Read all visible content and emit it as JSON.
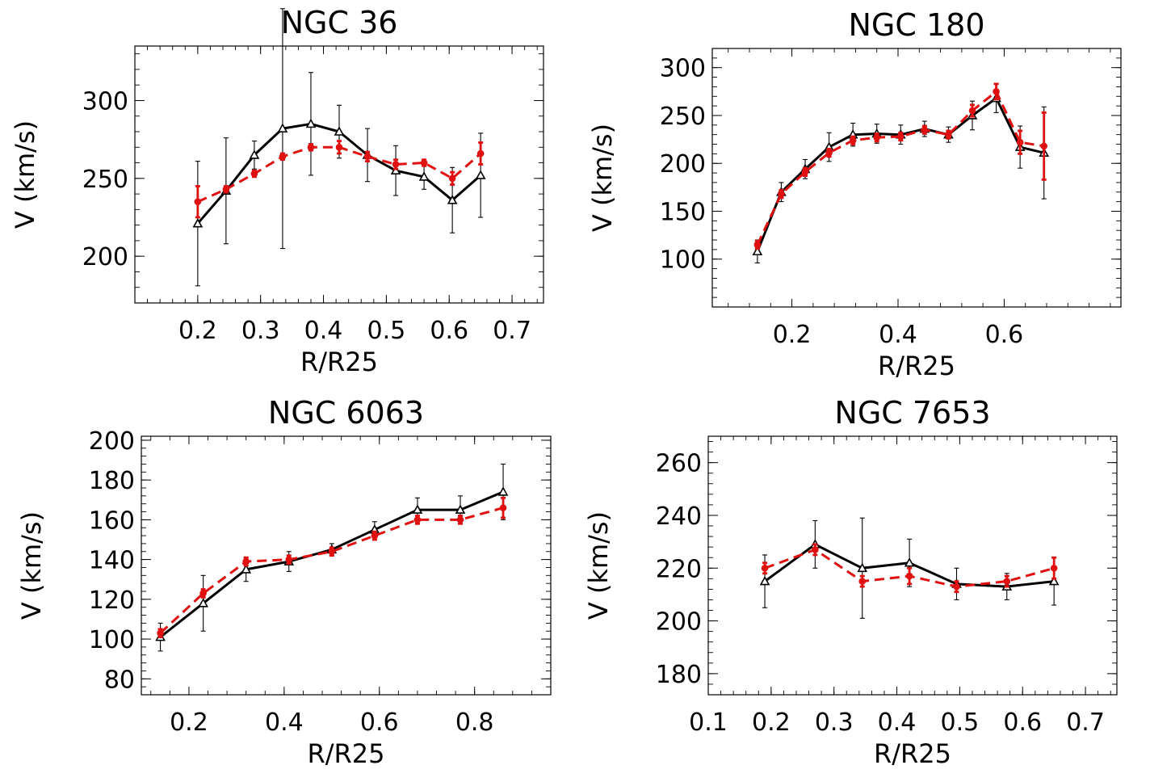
{
  "figure": {
    "colors": {
      "black": "#000000",
      "red": "#e01010"
    }
  },
  "chart_data": [
    {
      "type": "line",
      "title": "NGC 36",
      "xlabel": "R/R25",
      "ylabel": "V (km/s)",
      "xlim": [
        0.1,
        0.75
      ],
      "ylim": [
        170,
        335
      ],
      "xticks": [
        0.2,
        0.3,
        0.4,
        0.5,
        0.6,
        0.7
      ],
      "xtick_labels": [
        "0.2",
        "0.3",
        "0.4",
        "0.5",
        "0.6",
        "0.7"
      ],
      "yticks": [
        200,
        250,
        300
      ],
      "ytick_labels": [
        "200",
        "250",
        "300"
      ],
      "grid": false,
      "series": [
        {
          "style": "solid",
          "color": "#000000",
          "marker": "triangle",
          "x": [
            0.2,
            0.245,
            0.29,
            0.335,
            0.38,
            0.425,
            0.47,
            0.515,
            0.56,
            0.605,
            0.65
          ],
          "y": [
            221,
            242,
            265,
            282,
            285,
            280,
            265,
            255,
            251,
            236,
            252
          ],
          "err": [
            40,
            34,
            9,
            77,
            33,
            17,
            17,
            16,
            8,
            21,
            27
          ]
        },
        {
          "style": "dashed",
          "color": "#e01010",
          "marker": "circle",
          "x": [
            0.2,
            0.245,
            0.29,
            0.335,
            0.38,
            0.425,
            0.47,
            0.515,
            0.56,
            0.605,
            0.65
          ],
          "y": [
            235,
            243,
            253,
            264,
            270,
            270,
            264,
            259,
            260,
            250,
            266
          ],
          "err": [
            10,
            2,
            2,
            2,
            2,
            4,
            3,
            3,
            2,
            4,
            7
          ]
        }
      ]
    },
    {
      "type": "line",
      "title": "NGC 180",
      "xlabel": "R/R25",
      "ylabel": "V (km/s)",
      "xlim": [
        0.05,
        0.82
      ],
      "ylim": [
        50,
        320
      ],
      "xticks": [
        0.2,
        0.4,
        0.6
      ],
      "xtick_labels": [
        "0.2",
        "0.4",
        "0.6"
      ],
      "yticks": [
        100,
        150,
        200,
        250,
        300
      ],
      "ytick_labels": [
        "100",
        "150",
        "200",
        "250",
        "300"
      ],
      "grid": false,
      "series": [
        {
          "style": "solid",
          "color": "#000000",
          "marker": "triangle",
          "x": [
            0.135,
            0.18,
            0.225,
            0.27,
            0.315,
            0.36,
            0.405,
            0.45,
            0.495,
            0.54,
            0.585,
            0.63,
            0.675
          ],
          "y": [
            108,
            170,
            194,
            217,
            230,
            231,
            230,
            236,
            230,
            250,
            268,
            217,
            211
          ],
          "err": [
            12,
            10,
            10,
            15,
            12,
            10,
            10,
            8,
            8,
            15,
            15,
            22,
            48
          ]
        },
        {
          "style": "dashed",
          "color": "#e01010",
          "marker": "circle",
          "x": [
            0.135,
            0.18,
            0.225,
            0.27,
            0.315,
            0.36,
            0.405,
            0.45,
            0.495,
            0.54,
            0.585,
            0.63,
            0.675
          ],
          "y": [
            115,
            168,
            191,
            211,
            224,
            227,
            228,
            235,
            230,
            255,
            275,
            222,
            218
          ],
          "err": [
            4,
            4,
            4,
            4,
            4,
            4,
            4,
            4,
            4,
            6,
            8,
            12,
            35
          ]
        }
      ]
    },
    {
      "type": "line",
      "title": "NGC 6063",
      "xlabel": "R/R25",
      "ylabel": "V (km/s)",
      "xlim": [
        0.1,
        0.96
      ],
      "ylim": [
        72,
        202
      ],
      "xticks": [
        0.2,
        0.4,
        0.6,
        0.8
      ],
      "xtick_labels": [
        "0.2",
        "0.4",
        "0.6",
        "0.8"
      ],
      "yticks": [
        80,
        100,
        120,
        140,
        160,
        180,
        200
      ],
      "ytick_labels": [
        "80",
        "100",
        "120",
        "140",
        "160",
        "180",
        "200"
      ],
      "grid": false,
      "series": [
        {
          "style": "solid",
          "color": "#000000",
          "marker": "triangle",
          "x": [
            0.14,
            0.23,
            0.32,
            0.41,
            0.5,
            0.59,
            0.68,
            0.77,
            0.86
          ],
          "y": [
            101,
            118,
            135,
            139,
            145,
            155,
            165,
            165,
            174
          ],
          "err": [
            7,
            14,
            6,
            5,
            3,
            4,
            6,
            7,
            14
          ]
        },
        {
          "style": "dashed",
          "color": "#e01010",
          "marker": "circle",
          "x": [
            0.14,
            0.23,
            0.32,
            0.41,
            0.5,
            0.59,
            0.68,
            0.77,
            0.86
          ],
          "y": [
            103,
            123,
            139,
            140,
            144,
            152,
            160,
            160,
            166
          ],
          "err": [
            2,
            2,
            2,
            2,
            2,
            2,
            2,
            2,
            5
          ]
        }
      ]
    },
    {
      "type": "line",
      "title": "NGC 7653",
      "xlabel": "R/R25",
      "ylabel": "V (km/s)",
      "xlim": [
        0.1,
        0.75
      ],
      "ylim": [
        172,
        270
      ],
      "xticks": [
        0.1,
        0.2,
        0.3,
        0.4,
        0.5,
        0.6,
        0.7
      ],
      "xtick_labels": [
        "0.1",
        "0.2",
        "0.3",
        "0.4",
        "0.5",
        "0.6",
        "0.7"
      ],
      "yticks": [
        180,
        200,
        220,
        240,
        260
      ],
      "ytick_labels": [
        "180",
        "200",
        "220",
        "240",
        "260"
      ],
      "grid": false,
      "series": [
        {
          "style": "solid",
          "color": "#000000",
          "marker": "triangle",
          "x": [
            0.19,
            0.27,
            0.345,
            0.42,
            0.495,
            0.575,
            0.65
          ],
          "y": [
            215,
            229,
            220,
            222,
            214,
            213,
            215
          ],
          "err": [
            10,
            9,
            19,
            9,
            6,
            5,
            9
          ]
        },
        {
          "style": "dashed",
          "color": "#e01010",
          "marker": "circle",
          "x": [
            0.19,
            0.27,
            0.345,
            0.42,
            0.495,
            0.575,
            0.65
          ],
          "y": [
            220,
            227,
            215,
            217,
            213,
            215,
            220
          ],
          "err": [
            2,
            2,
            2,
            3,
            2,
            2,
            4
          ]
        }
      ]
    }
  ]
}
